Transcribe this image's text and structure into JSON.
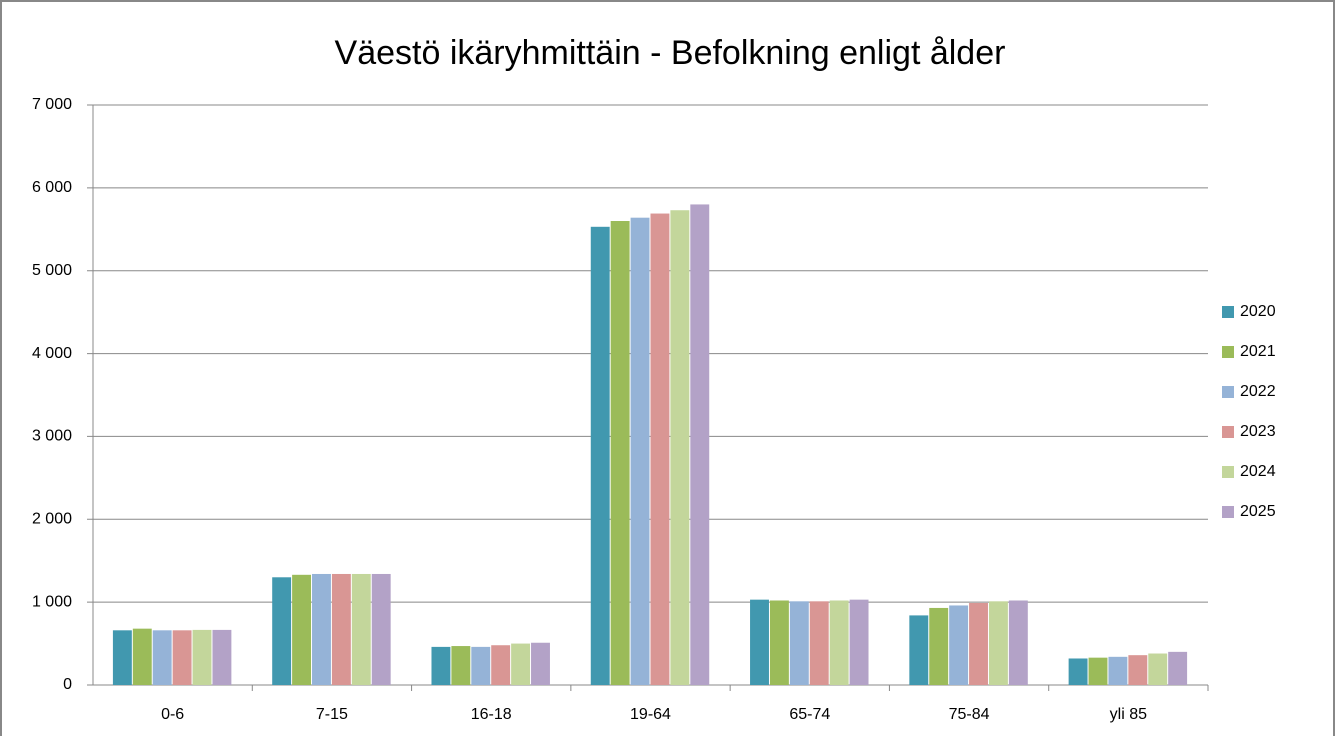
{
  "chart_data": {
    "type": "bar",
    "title": "Väestö ikäryhmittäin - Befolkning enligt ålder",
    "categories": [
      "0-6",
      "7-15",
      "16-18",
      "19-64",
      "65-74",
      "75-84",
      "yli 85"
    ],
    "series": [
      {
        "name": "2020",
        "color": "#4198af",
        "values": [
          660,
          1300,
          460,
          5530,
          1030,
          840,
          320
        ]
      },
      {
        "name": "2021",
        "color": "#9bbb59",
        "values": [
          680,
          1330,
          470,
          5600,
          1020,
          930,
          330
        ]
      },
      {
        "name": "2022",
        "color": "#95b3d7",
        "values": [
          660,
          1340,
          460,
          5640,
          1010,
          960,
          340
        ]
      },
      {
        "name": "2023",
        "color": "#d99694",
        "values": [
          660,
          1340,
          480,
          5690,
          1010,
          990,
          360
        ]
      },
      {
        "name": "2024",
        "color": "#c3d69b",
        "values": [
          665,
          1340,
          500,
          5730,
          1020,
          1010,
          380
        ]
      },
      {
        "name": "2025",
        "color": "#b3a2c7",
        "values": [
          665,
          1340,
          510,
          5800,
          1030,
          1020,
          400
        ]
      }
    ],
    "ylim": [
      0,
      7000
    ],
    "yticks": [
      0,
      {
        "value": 1000,
        "label": "1 000"
      },
      {
        "value": 2000,
        "label": "2 000"
      },
      {
        "value": 3000,
        "label": "3 000"
      },
      {
        "value": 4000,
        "label": "4 000"
      },
      {
        "value": 5000,
        "label": "5 000"
      },
      {
        "value": 6000,
        "label": "6 000"
      },
      {
        "value": 7000,
        "label": "7 000"
      }
    ],
    "grid": true,
    "legend": "right"
  }
}
